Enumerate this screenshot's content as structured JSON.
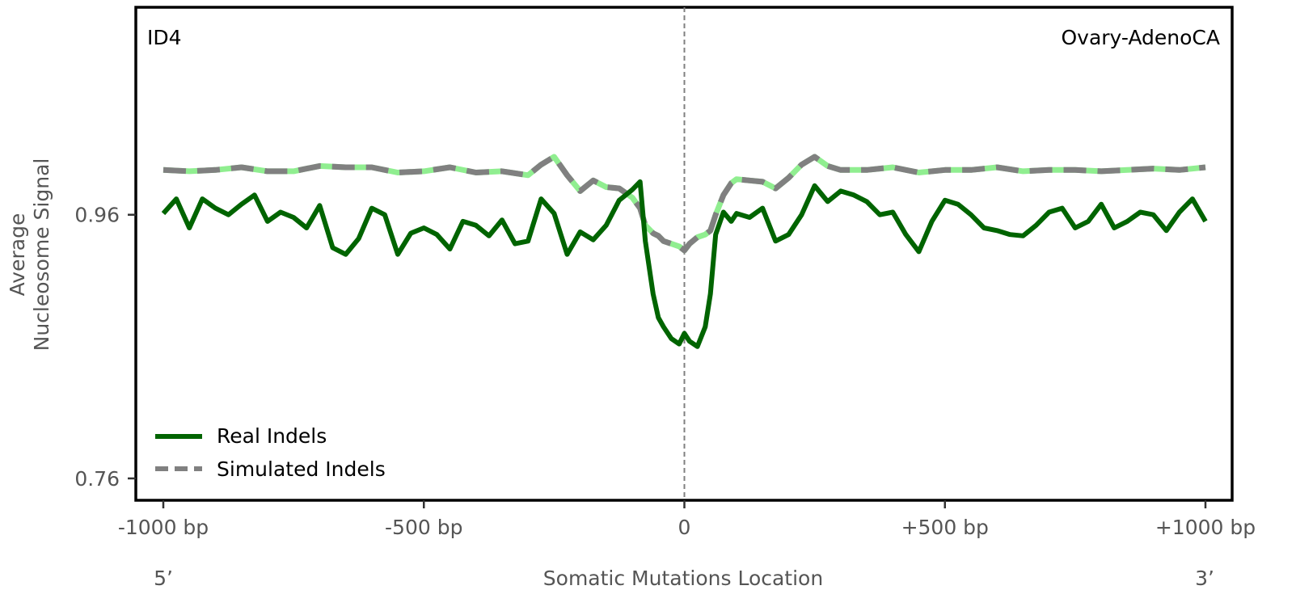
{
  "chart_data": {
    "type": "line",
    "panel_label": "ID4",
    "cancer_type": "Ovary-AdenoCA",
    "xlabel": "Somatic Mutations Location",
    "ylabel_line1": "Average",
    "ylabel_line2": "Nucleosome Signal",
    "x_ticks": [
      {
        "value": -1000,
        "label": "-1000 bp"
      },
      {
        "value": -500,
        "label": "-500 bp"
      },
      {
        "value": 0,
        "label": "0"
      },
      {
        "value": 500,
        "label": "+500 bp"
      },
      {
        "value": 1000,
        "label": "+1000 bp"
      }
    ],
    "y_ticks": [
      {
        "value": 0.96,
        "label": "0.96"
      },
      {
        "value": 0.76,
        "label": "0.76"
      }
    ],
    "end_labels": {
      "left": "5’",
      "right": "3’"
    },
    "xlim": [
      -1000,
      1000
    ],
    "ylim": [
      0.752,
      1.118
    ],
    "vline_x": 0,
    "legend_placement": "lower-left",
    "series": [
      {
        "name": "Real Indels",
        "style": "solid",
        "color": "#006400",
        "x": [
          -1000,
          -975,
          -950,
          -925,
          -900,
          -875,
          -850,
          -825,
          -800,
          -775,
          -750,
          -725,
          -700,
          -675,
          -650,
          -625,
          -600,
          -575,
          -550,
          -525,
          -500,
          -475,
          -450,
          -425,
          -400,
          -375,
          -350,
          -325,
          -300,
          -275,
          -250,
          -225,
          -200,
          -175,
          -150,
          -125,
          -100,
          -85,
          -75,
          -60,
          -50,
          -40,
          -25,
          -10,
          0,
          10,
          25,
          40,
          50,
          60,
          75,
          90,
          100,
          125,
          150,
          175,
          200,
          225,
          250,
          275,
          300,
          325,
          350,
          375,
          400,
          425,
          450,
          475,
          500,
          525,
          550,
          575,
          600,
          625,
          650,
          675,
          700,
          725,
          750,
          775,
          800,
          825,
          850,
          875,
          900,
          925,
          950,
          975,
          1000
        ],
        "y": [
          0.961,
          0.972,
          0.95,
          0.972,
          0.965,
          0.96,
          0.968,
          0.975,
          0.955,
          0.962,
          0.958,
          0.95,
          0.967,
          0.935,
          0.93,
          0.942,
          0.965,
          0.96,
          0.93,
          0.946,
          0.95,
          0.945,
          0.934,
          0.955,
          0.952,
          0.944,
          0.956,
          0.938,
          0.94,
          0.972,
          0.961,
          0.93,
          0.947,
          0.941,
          0.952,
          0.971,
          0.979,
          0.985,
          0.94,
          0.9,
          0.882,
          0.875,
          0.866,
          0.862,
          0.87,
          0.864,
          0.86,
          0.875,
          0.9,
          0.945,
          0.962,
          0.955,
          0.961,
          0.958,
          0.965,
          0.94,
          0.945,
          0.96,
          0.982,
          0.97,
          0.978,
          0.975,
          0.97,
          0.96,
          0.962,
          0.945,
          0.932,
          0.955,
          0.971,
          0.968,
          0.96,
          0.95,
          0.948,
          0.945,
          0.944,
          0.952,
          0.962,
          0.965,
          0.95,
          0.955,
          0.968,
          0.95,
          0.955,
          0.962,
          0.96,
          0.948,
          0.962,
          0.972,
          0.955
        ]
      },
      {
        "name": "Simulated Indels",
        "style": "dashed",
        "color": "#808080",
        "color_secondary": "#90ee90",
        "x": [
          -1000,
          -950,
          -900,
          -850,
          -800,
          -750,
          -700,
          -650,
          -600,
          -550,
          -500,
          -450,
          -400,
          -350,
          -300,
          -275,
          -250,
          -225,
          -200,
          -175,
          -150,
          -125,
          -100,
          -85,
          -75,
          -60,
          -50,
          -40,
          -25,
          -10,
          0,
          10,
          25,
          40,
          50,
          60,
          75,
          90,
          100,
          125,
          150,
          175,
          200,
          225,
          250,
          275,
          300,
          350,
          400,
          450,
          500,
          550,
          600,
          650,
          700,
          750,
          800,
          850,
          900,
          950,
          1000
        ],
        "y": [
          0.994,
          0.993,
          0.994,
          0.996,
          0.993,
          0.993,
          0.997,
          0.996,
          0.996,
          0.992,
          0.993,
          0.996,
          0.992,
          0.993,
          0.99,
          0.998,
          1.004,
          0.99,
          0.978,
          0.986,
          0.981,
          0.98,
          0.973,
          0.965,
          0.952,
          0.946,
          0.944,
          0.94,
          0.938,
          0.936,
          0.933,
          0.938,
          0.943,
          0.945,
          0.948,
          0.96,
          0.975,
          0.984,
          0.987,
          0.986,
          0.985,
          0.98,
          0.988,
          0.998,
          1.004,
          0.997,
          0.994,
          0.994,
          0.996,
          0.992,
          0.994,
          0.994,
          0.996,
          0.993,
          0.994,
          0.994,
          0.993,
          0.994,
          0.995,
          0.994,
          0.996
        ]
      }
    ]
  }
}
